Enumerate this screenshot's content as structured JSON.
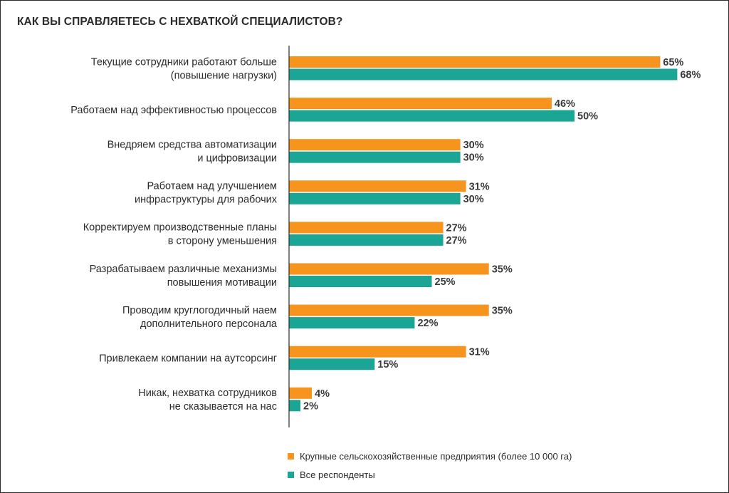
{
  "chart_data": {
    "type": "bar",
    "orientation": "horizontal",
    "title": "КАК ВЫ СПРАВЛЯЕТЕСЬ С НЕХВАТКОЙ СПЕЦИАЛИСТОВ?",
    "categories": [
      [
        "Текущие сотрудники работают больше",
        "(повышение нагрузки)"
      ],
      [
        "Работаем над эффективностью процессов"
      ],
      [
        "Внедряем средства автоматизации",
        "и цифровизации"
      ],
      [
        "Работаем над улучшением",
        "инфраструктуры для рабочих"
      ],
      [
        "Корректируем производственные планы",
        "в сторону уменьшения"
      ],
      [
        "Разрабатываем различные механизмы",
        "повышения мотивации"
      ],
      [
        "Проводим круглогодичный наем",
        "дополнительного персонала"
      ],
      [
        "Привлекаем компании на аутсорсинг"
      ],
      [
        "Никак, нехватка сотрудников",
        "не сказывается на нас"
      ]
    ],
    "series": [
      {
        "name": "Крупные сельскохозяйственные предприятия (более 10 000 га)",
        "color": "#F7941D",
        "values": [
          65,
          46,
          30,
          31,
          27,
          35,
          35,
          31,
          4
        ],
        "labels": [
          "65%",
          "46%",
          "30%",
          "31%",
          "27%",
          "35%",
          "35%",
          "31%",
          "4%"
        ]
      },
      {
        "name": "Все респонденты",
        "color": "#1AA594",
        "values": [
          68,
          50,
          30,
          30,
          27,
          25,
          22,
          15,
          2
        ],
        "labels": [
          "68%",
          "50%",
          "30%",
          "30%",
          "27%",
          "25%",
          "22%",
          "15%",
          "2%"
        ]
      }
    ],
    "xlim": [
      0,
      100
    ],
    "grid": false,
    "legend_position": "bottom"
  }
}
